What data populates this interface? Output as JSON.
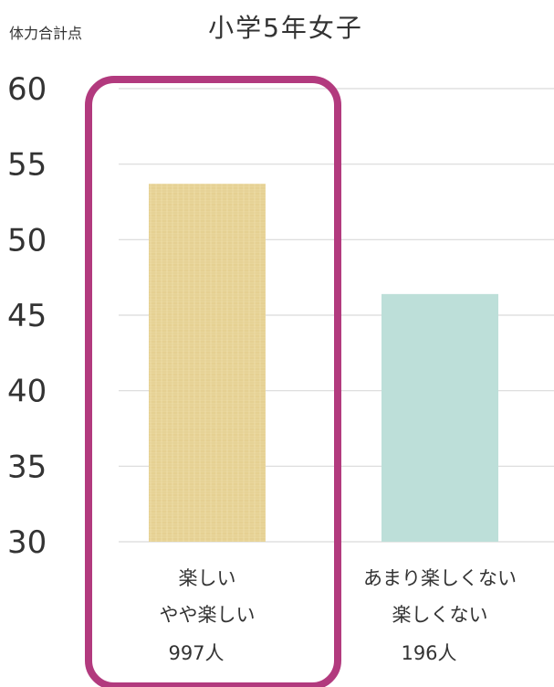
{
  "chart_data": {
    "type": "bar",
    "title": "小学5年女子",
    "ylabel": "体力合計点",
    "xlabel": "",
    "ylim": [
      30,
      60
    ],
    "yticks": [
      60,
      55,
      50,
      45,
      40,
      35,
      30
    ],
    "grid": true,
    "categories": [
      {
        "lines": [
          "楽しい",
          "やや楽しい"
        ],
        "count_label": "997人"
      },
      {
        "lines": [
          "あまり楽しくない",
          "楽しくない"
        ],
        "count_label": "196人"
      }
    ],
    "values": [
      53.7,
      46.4
    ],
    "colors": {
      "bar_1": "#e8d59a",
      "bar_2": "#bddfd9",
      "highlight_border": "#b23a7e",
      "grid": "#d9d9d9",
      "text": "#333333"
    },
    "highlight_category_index": 0
  }
}
